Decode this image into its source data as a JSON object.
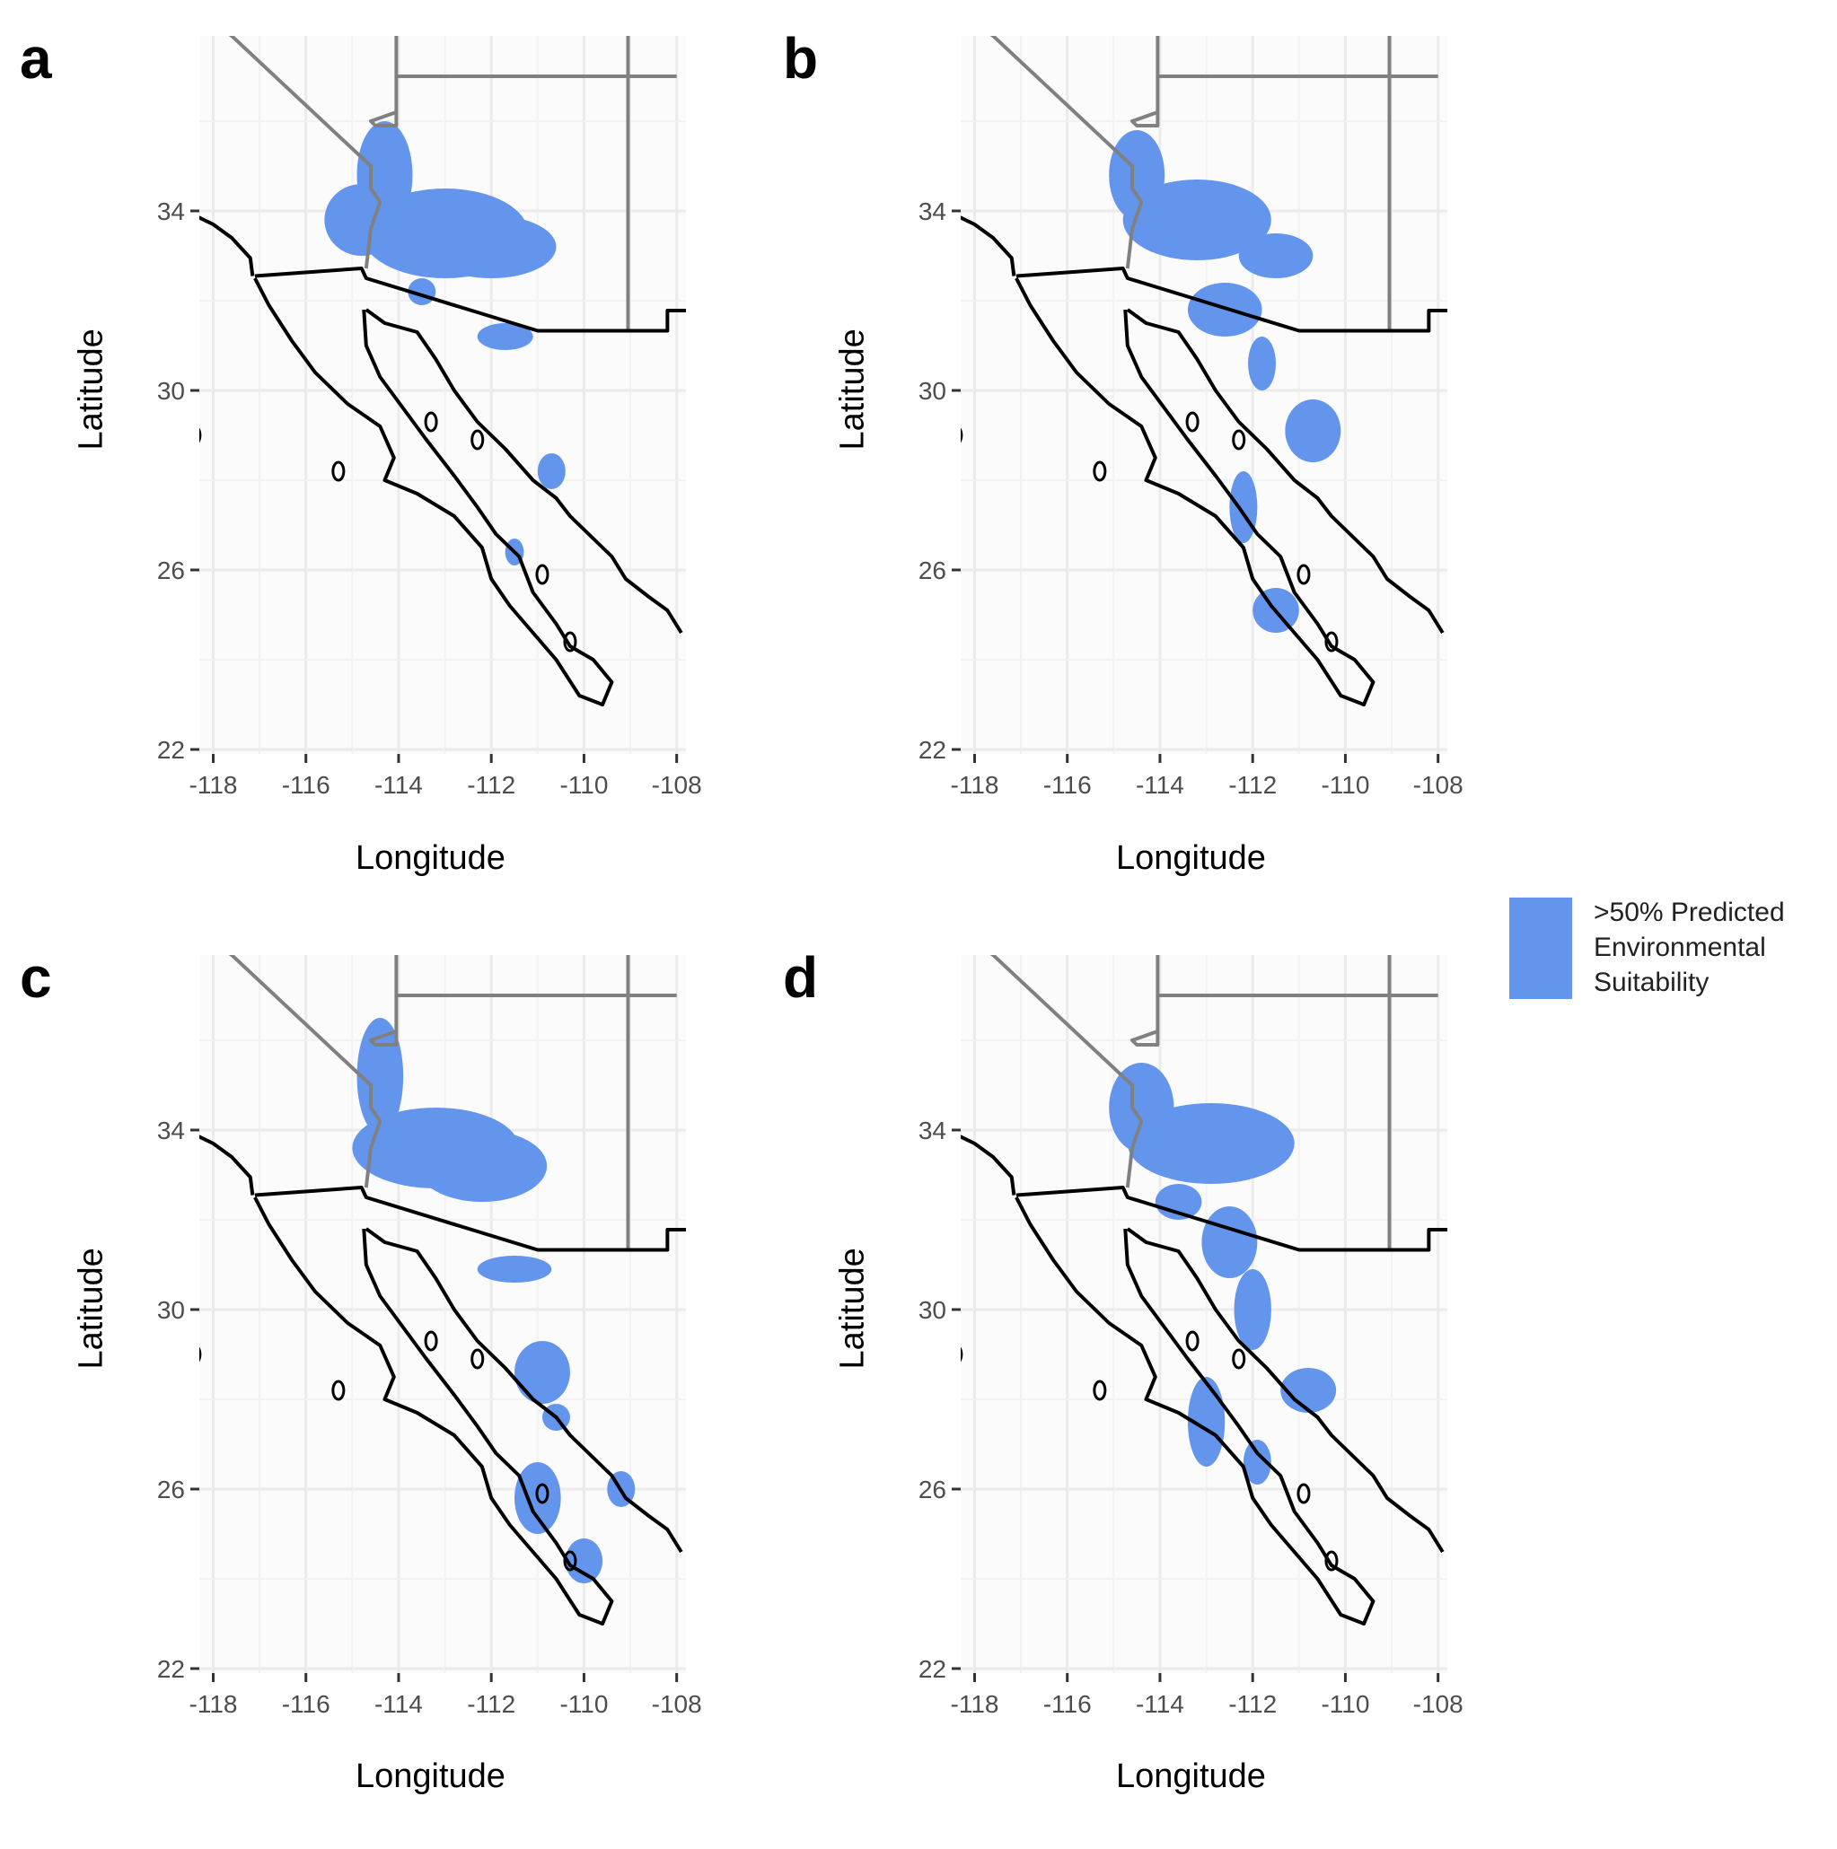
{
  "figure": {
    "xlabel": "Longitude",
    "ylabel": "Latitude",
    "x_ticks": [
      "-118",
      "-116",
      "-114",
      "-112",
      "-110",
      "-108"
    ],
    "y_ticks": [
      "34",
      "30",
      "26",
      "22"
    ],
    "suitability_color": "#6495ED",
    "panels": [
      {
        "letter": "a"
      },
      {
        "letter": "b"
      },
      {
        "letter": "c"
      },
      {
        "letter": "d"
      }
    ]
  },
  "legend": {
    "lines": [
      ">50% Predicted",
      "Environmental",
      "Suitability"
    ],
    "swatch_color": "#6495ED"
  }
}
